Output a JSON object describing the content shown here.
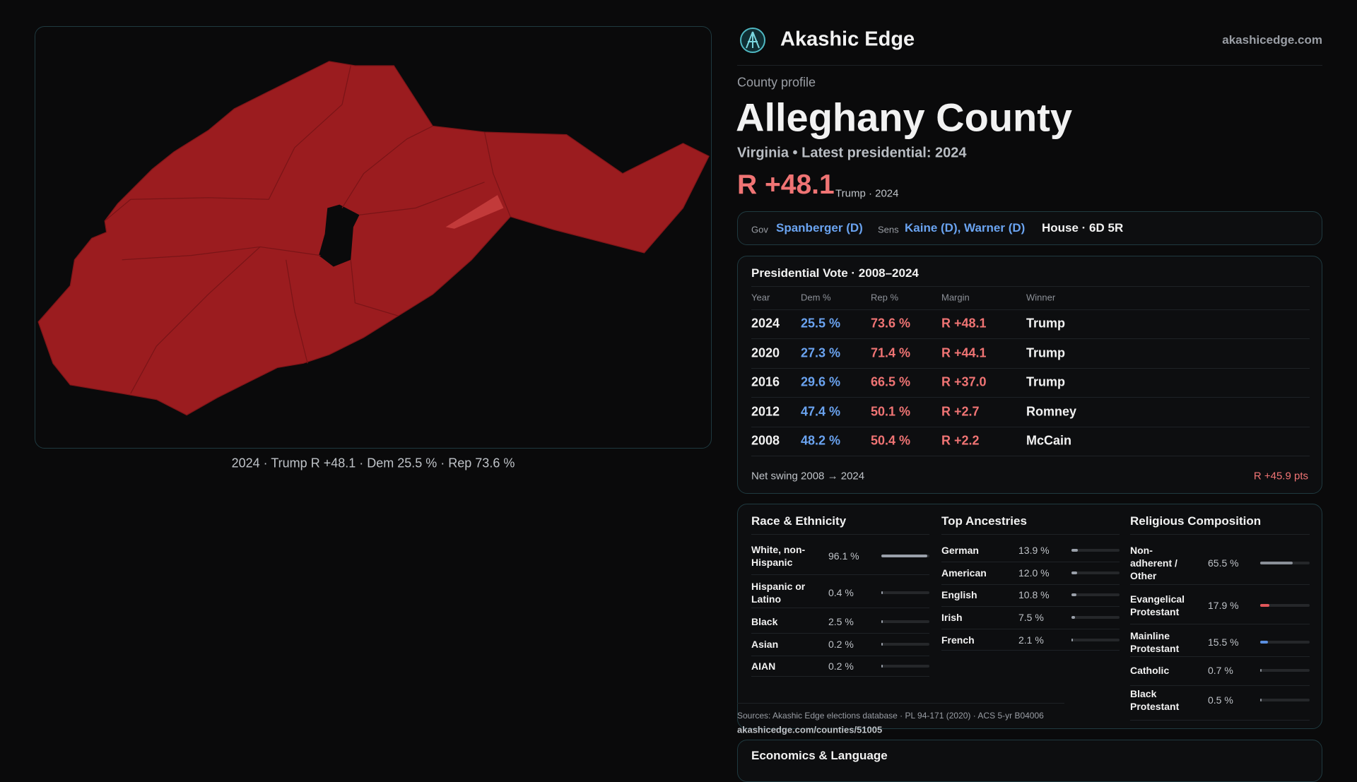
{
  "brand": {
    "name": "Akashic Edge",
    "site": "akashicedge.com"
  },
  "map": {
    "caption": "2024 · Trump R +48.1 · Dem 25.5 % · Rep 73.6 %"
  },
  "profile": {
    "kicker": "County profile",
    "title": "Alleghany County",
    "subtitle": "Virginia • Latest presidential: 2024",
    "margin": "R +48.1",
    "margin_note": "Trump · 2024"
  },
  "officials": [
    {
      "role": "Gov",
      "names": "Spanberger (D)"
    },
    {
      "role": "Sens",
      "names": "Kaine (D), Warner (D)"
    }
  ],
  "house": "House · 6D 5R",
  "presidential": {
    "title": "Presidential Vote · 2008–2024",
    "columns": [
      "Year",
      "Dem %",
      "Rep %",
      "Margin",
      "Winner"
    ],
    "rows": [
      [
        "2024",
        "25.5 %",
        "73.6 %",
        "R +48.1",
        "Trump"
      ],
      [
        "2020",
        "27.3 %",
        "71.4 %",
        "R +44.1",
        "Trump"
      ],
      [
        "2016",
        "29.6 %",
        "66.5 %",
        "R +37.0",
        "Trump"
      ],
      [
        "2012",
        "47.4 %",
        "50.1 %",
        "R +2.7",
        "Romney"
      ],
      [
        "2008",
        "48.2 %",
        "50.4 %",
        "R +2.2",
        "McCain"
      ]
    ],
    "swing_label": "Net swing 2008 → 2024",
    "swing_value": "R +45.9 pts"
  },
  "demographics": [
    {
      "title": "Race & Ethnicity",
      "rows": [
        {
          "label": "White, non-Hispanic",
          "value": 96.1,
          "value_label": "96.1 %",
          "color": "#9aa0aa"
        },
        {
          "label": "Hispanic or Latino",
          "value": 0.4,
          "value_label": "0.4 %",
          "color": "#9aa0aa"
        },
        {
          "label": "Black",
          "value": 2.5,
          "value_label": "2.5 %",
          "color": "#9aa0aa"
        },
        {
          "label": "Asian",
          "value": 0.2,
          "value_label": "0.2 %",
          "color": "#9aa0aa"
        },
        {
          "label": "AIAN",
          "value": 0.2,
          "value_label": "0.2 %",
          "color": "#9aa0aa"
        }
      ]
    },
    {
      "title": "Top Ancestries",
      "rows": [
        {
          "label": "German",
          "value": 13.9,
          "value_label": "13.9 %",
          "color": "#9aa0aa"
        },
        {
          "label": "American",
          "value": 12.0,
          "value_label": "12.0 %",
          "color": "#9aa0aa"
        },
        {
          "label": "English",
          "value": 10.8,
          "value_label": "10.8 %",
          "color": "#9aa0aa"
        },
        {
          "label": "Irish",
          "value": 7.5,
          "value_label": "7.5 %",
          "color": "#9aa0aa"
        },
        {
          "label": "French",
          "value": 2.1,
          "value_label": "2.1 %",
          "color": "#9aa0aa"
        }
      ]
    },
    {
      "title": "Religious Composition",
      "rows": [
        {
          "label": "Non-adherent / Other",
          "value": 65.5,
          "value_label": "65.5 %",
          "color": "#8a8f98"
        },
        {
          "label": "Evangelical Protestant",
          "value": 17.9,
          "value_label": "17.9 %",
          "color": "#e0575a"
        },
        {
          "label": "Mainline Protestant",
          "value": 15.5,
          "value_label": "15.5 %",
          "color": "#5b8fe0"
        },
        {
          "label": "Catholic",
          "value": 0.7,
          "value_label": "0.7 %",
          "color": "#8a8f98"
        },
        {
          "label": "Black Protestant",
          "value": 0.5,
          "value_label": "0.5 %",
          "color": "#8a8f98"
        }
      ]
    }
  ],
  "sources": "Sources: Akashic Edge elections database · PL 94-171 (2020) · ACS 5-yr B04006",
  "url": "akashicedge.com/counties/51005",
  "economics": {
    "title": "Economics & Language"
  }
}
